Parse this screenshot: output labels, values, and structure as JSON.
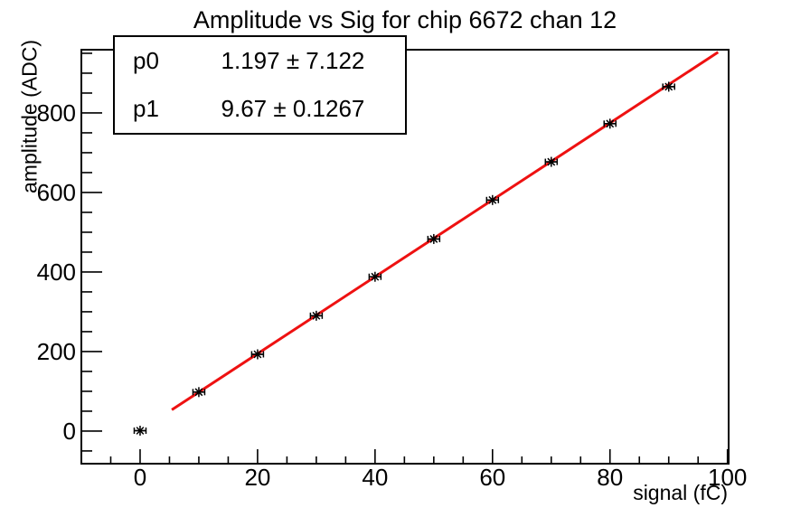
{
  "title": "Amplitude vs Sig for chip 6672 chan 12",
  "stats": {
    "rows": [
      {
        "name": "p0",
        "value": "1.197 ± 7.122"
      },
      {
        "name": "p1",
        "value": "9.67 ± 0.1267"
      }
    ]
  },
  "chart_data": {
    "type": "scatter",
    "title": "Amplitude vs Sig for chip 6672 chan 12",
    "xlabel": "signal (fC)",
    "ylabel": "amplitude (ADC)",
    "x": [
      0,
      10,
      20,
      30,
      40,
      50,
      60,
      70,
      80,
      90
    ],
    "y": [
      1,
      98,
      193,
      290,
      388,
      483,
      581,
      677,
      773,
      866
    ],
    "x_err": 1,
    "xlim": [
      -10,
      100.2
    ],
    "ylim": [
      -82,
      959
    ],
    "x_major_ticks": [
      0,
      20,
      40,
      60,
      80,
      100
    ],
    "x_minor_step": 5,
    "y_major_ticks": [
      0,
      200,
      400,
      600,
      800
    ],
    "y_minor_step": 50,
    "grid": false,
    "legend_position": "stats-box-top-left",
    "marker": "asterisk-with-x-error-bars",
    "marker_color": "#000000",
    "fit": {
      "type": "linear",
      "p0": 1.197,
      "p1": 9.67,
      "x_range": [
        5.4,
        98.4
      ],
      "color": "#ee1111"
    }
  }
}
